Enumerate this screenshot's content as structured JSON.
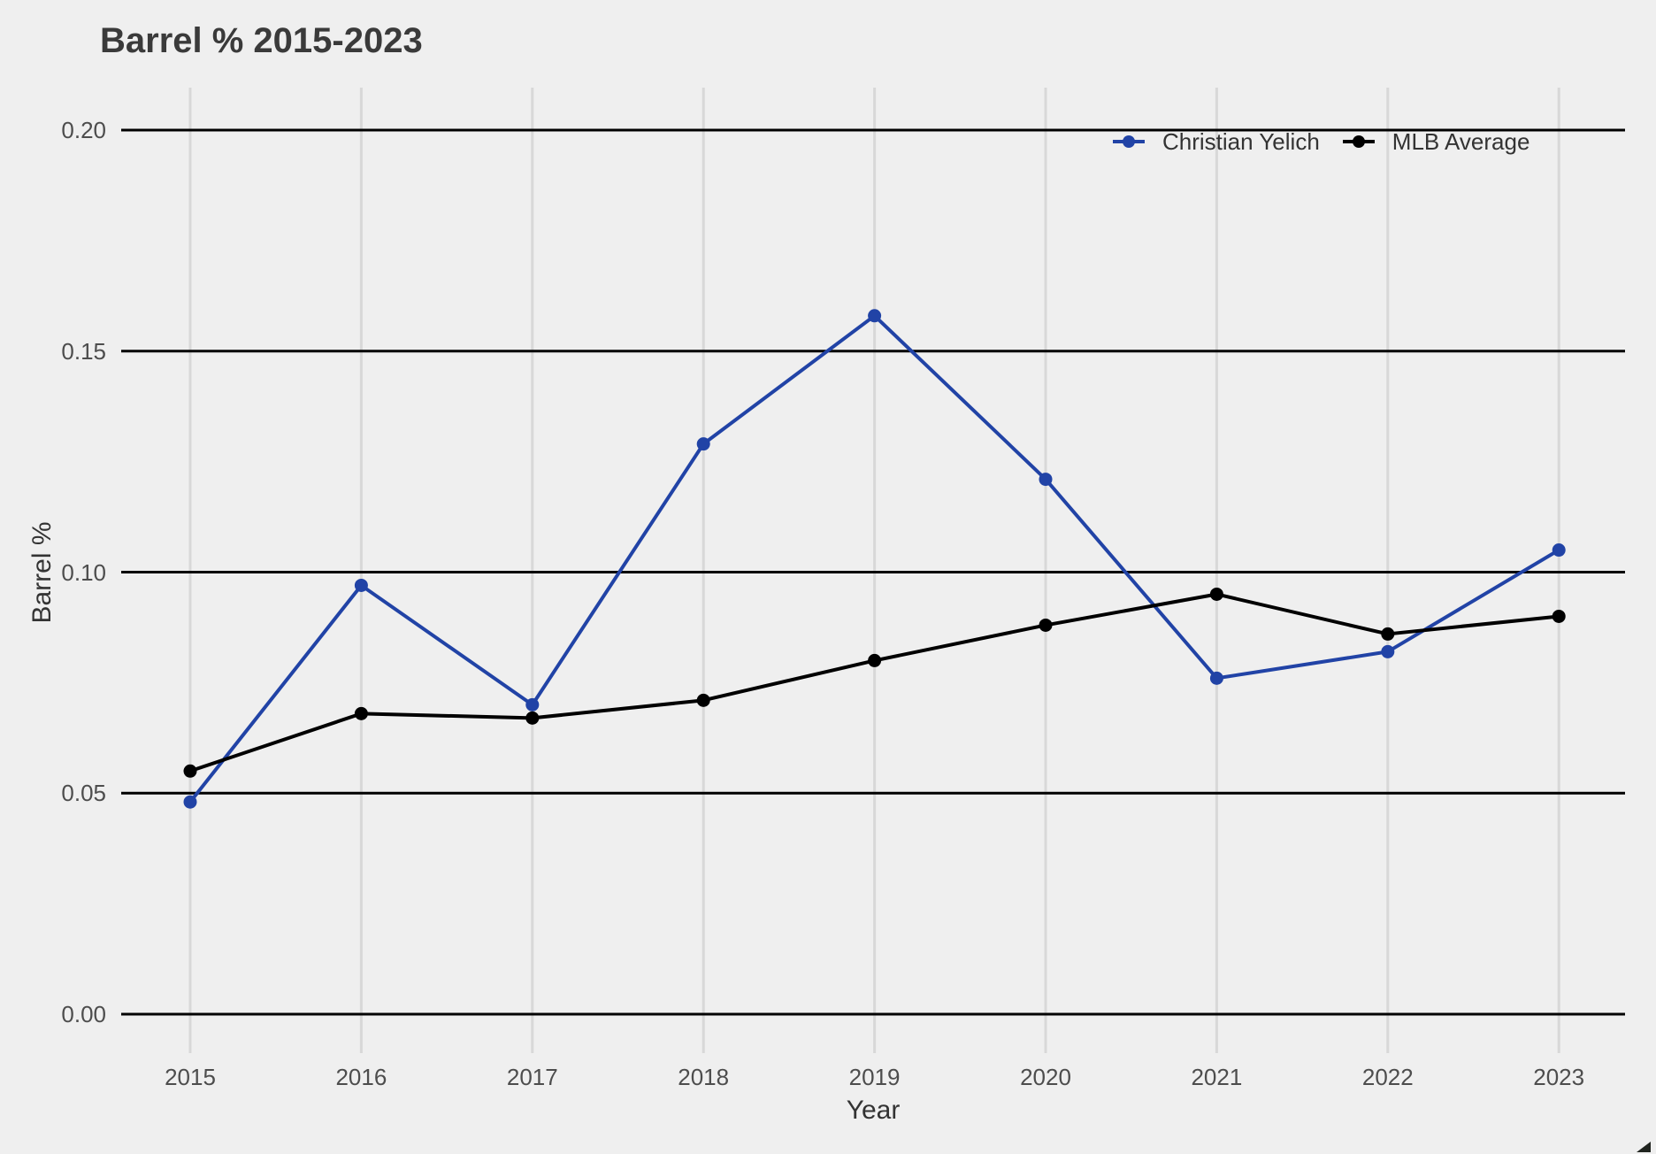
{
  "title": "Barrel % 2015-2023",
  "axes": {
    "x_label": "Year",
    "y_label": "Barrel %",
    "x_tick_labels": [
      "2015",
      "2016",
      "2017",
      "2018",
      "2019",
      "2020",
      "2021",
      "2022",
      "2023"
    ],
    "y_tick_labels": [
      "0.00",
      "0.05",
      "0.10",
      "0.15",
      "0.20"
    ]
  },
  "legend": {
    "position": "top-right",
    "items": [
      "Christian Yelich",
      "MLB Average"
    ]
  },
  "colors": {
    "background": "#efefef",
    "horizontal_grid": "#000000",
    "vertical_grid": "#d8d8d8",
    "tick_text": "#4d4d4d",
    "axis_title_text": "#333333",
    "title_text": "#3a3a3a",
    "series_yelich": "#2143a6",
    "series_mlb": "#000000"
  },
  "chart_data": {
    "type": "line",
    "title": "Barrel % 2015-2023",
    "xlabel": "Year",
    "ylabel": "Barrel %",
    "x": [
      2015,
      2016,
      2017,
      2018,
      2019,
      2020,
      2021,
      2022,
      2023
    ],
    "y_ticks": [
      0.0,
      0.05,
      0.1,
      0.15,
      0.2
    ],
    "ylim": [
      0,
      0.2
    ],
    "grid": {
      "horizontal": true,
      "vertical": true
    },
    "legend_position": "top-right",
    "series": [
      {
        "name": "Christian Yelich",
        "color": "#2143a6",
        "values": [
          0.048,
          0.097,
          0.07,
          0.129,
          0.158,
          0.121,
          0.076,
          0.082,
          0.105
        ]
      },
      {
        "name": "MLB Average",
        "color": "#000000",
        "values": [
          0.055,
          0.068,
          0.067,
          0.071,
          0.08,
          0.088,
          0.095,
          0.086,
          0.09
        ]
      }
    ]
  }
}
